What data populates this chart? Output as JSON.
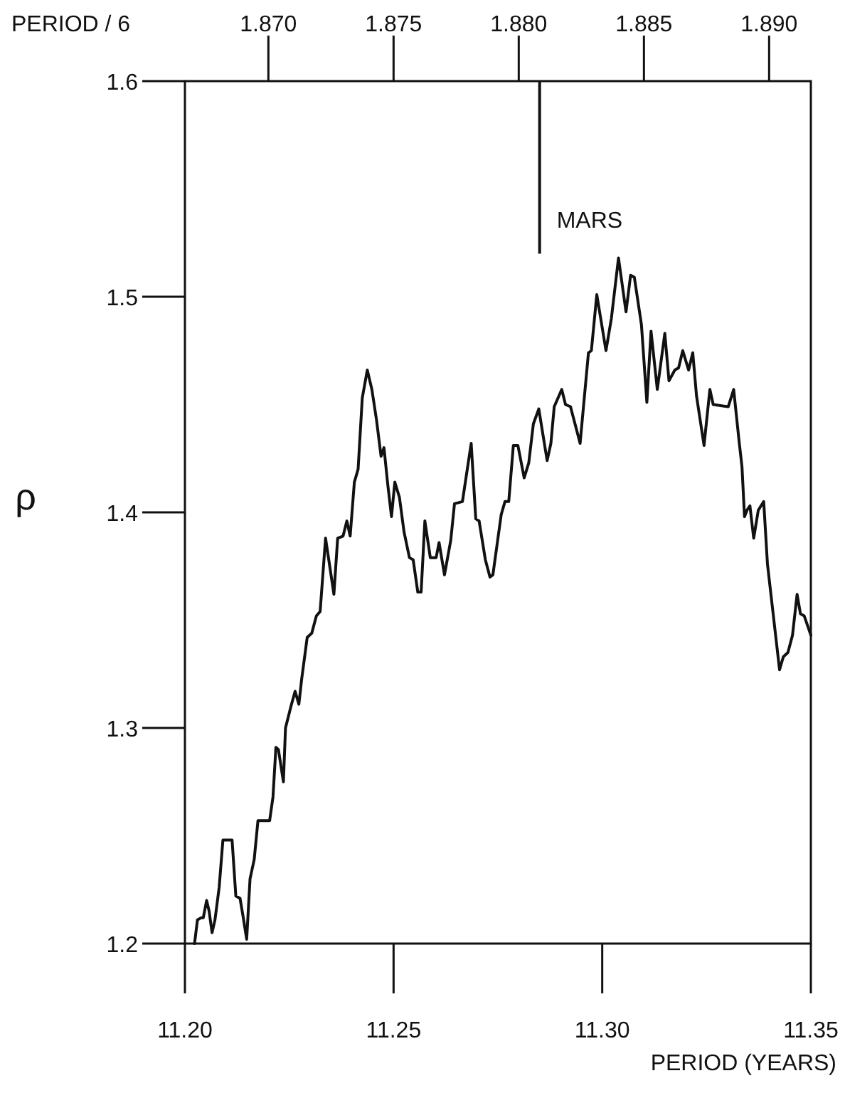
{
  "chart_data": {
    "type": "line",
    "xlabel": "PERIOD (YEARS)",
    "ylabel": "ρ",
    "x2label": "PERIOD / 6",
    "line_style": "solid",
    "xlim": [
      11.2,
      11.35
    ],
    "xticks": [
      {
        "value": 11.2,
        "label": "11.20"
      },
      {
        "value": 11.25,
        "label": "11.25"
      },
      {
        "value": 11.3,
        "label": "11.30"
      },
      {
        "value": 11.35,
        "label": "11.35"
      }
    ],
    "x2lim": [
      1.866667,
      1.891667
    ],
    "x2ticks": [
      {
        "value": 1.87,
        "label": "1.870"
      },
      {
        "value": 1.875,
        "label": "1.875"
      },
      {
        "value": 1.88,
        "label": "1.880"
      },
      {
        "value": 1.885,
        "label": "1.885"
      },
      {
        "value": 1.89,
        "label": "1.890"
      }
    ],
    "ylim": [
      1.2,
      1.6
    ],
    "yticks": [
      1.2,
      1.3,
      1.4,
      1.5,
      1.6
    ],
    "ref_lines": [
      {
        "axis": "x",
        "value": 11.285,
        "label": "MARS"
      }
    ],
    "x": [
      11.2023,
      11.203,
      11.2039,
      11.2044,
      11.2052,
      11.2058,
      11.2065,
      11.2072,
      11.2082,
      11.2091,
      11.2113,
      11.2122,
      11.2132,
      11.2139,
      11.2148,
      11.2156,
      11.2166,
      11.2175,
      11.2203,
      11.2211,
      11.2218,
      11.2224,
      11.2236,
      11.2241,
      11.2254,
      11.2264,
      11.2273,
      11.228,
      11.2293,
      11.2304,
      11.2315,
      11.2324,
      11.2337,
      11.2357,
      11.2366,
      11.2379,
      11.2388,
      11.2396,
      11.2406,
      11.2415,
      11.2425,
      11.2437,
      11.2448,
      11.2459,
      11.247,
      11.2477,
      11.2486,
      11.2495,
      11.2503,
      11.2514,
      11.2525,
      11.2538,
      11.2547,
      11.2558,
      11.2566,
      11.2575,
      11.2588,
      11.2602,
      11.2609,
      11.2622,
      11.2637,
      11.2646,
      11.2665,
      11.2686,
      11.2697,
      11.2705,
      11.272,
      11.2731,
      11.2738,
      11.2758,
      11.2767,
      11.2776,
      11.2787,
      11.2798,
      11.2813,
      11.2824,
      11.2835,
      11.2848,
      11.2868,
      11.2877,
      11.2885,
      11.2903,
      11.2912,
      11.2924,
      11.2947,
      11.2967,
      11.2974,
      11.2987,
      11.3009,
      11.3022,
      11.3039,
      11.3057,
      11.3068,
      11.3077,
      11.3094,
      11.3107,
      11.3117,
      11.3132,
      11.315,
      11.316,
      11.3174,
      11.3183,
      11.3193,
      11.3207,
      11.3217,
      11.3226,
      11.3244,
      11.3258,
      11.3266,
      11.3302,
      11.3315,
      11.3328,
      11.3335,
      11.3341,
      11.3347,
      11.3354,
      11.3363,
      11.3374,
      11.3387,
      11.3396,
      11.3409,
      11.3425,
      11.3434,
      11.3445,
      11.3456,
      11.3467,
      11.3475,
      11.3484,
      11.35
    ],
    "series": [
      {
        "color": "#111111",
        "values": [
          1.2,
          1.211,
          1.212,
          1.212,
          1.22,
          1.215,
          1.205,
          1.211,
          1.226,
          1.248,
          1.248,
          1.222,
          1.221,
          1.213,
          1.202,
          1.23,
          1.239,
          1.257,
          1.257,
          1.268,
          1.291,
          1.29,
          1.275,
          1.3,
          1.31,
          1.317,
          1.311,
          1.323,
          1.342,
          1.344,
          1.352,
          1.354,
          1.388,
          1.362,
          1.388,
          1.389,
          1.396,
          1.389,
          1.414,
          1.42,
          1.453,
          1.466,
          1.457,
          1.443,
          1.426,
          1.43,
          1.413,
          1.398,
          1.414,
          1.407,
          1.391,
          1.379,
          1.378,
          1.363,
          1.363,
          1.396,
          1.379,
          1.379,
          1.386,
          1.371,
          1.387,
          1.404,
          1.405,
          1.432,
          1.397,
          1.396,
          1.378,
          1.37,
          1.371,
          1.399,
          1.405,
          1.405,
          1.431,
          1.431,
          1.416,
          1.423,
          1.441,
          1.448,
          1.424,
          1.432,
          1.449,
          1.457,
          1.45,
          1.449,
          1.432,
          1.474,
          1.475,
          1.501,
          1.475,
          1.49,
          1.518,
          1.493,
          1.51,
          1.509,
          1.487,
          1.451,
          1.484,
          1.457,
          1.483,
          1.461,
          1.466,
          1.467,
          1.475,
          1.466,
          1.474,
          1.454,
          1.431,
          1.457,
          1.45,
          1.449,
          1.457,
          1.433,
          1.421,
          1.398,
          1.401,
          1.403,
          1.388,
          1.401,
          1.405,
          1.376,
          1.354,
          1.327,
          1.333,
          1.335,
          1.343,
          1.362,
          1.353,
          1.352,
          1.343
        ]
      }
    ]
  }
}
